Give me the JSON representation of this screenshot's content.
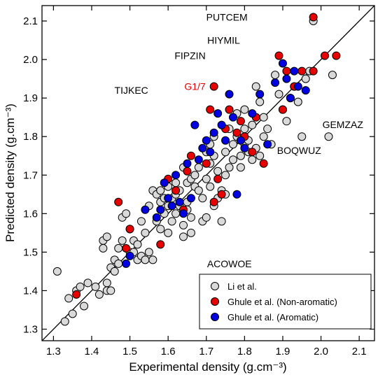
{
  "chart_data": {
    "type": "scatter",
    "xlabel": "Experimental density (g.cm⁻³)",
    "ylabel": "Predicted density (g.cm⁻³)",
    "xlim": [
      1.27,
      2.14
    ],
    "ylim": [
      1.27,
      2.14
    ],
    "xticks": [
      "1.3",
      "1.4",
      "1.5",
      "1.6",
      "1.7",
      "1.8",
      "1.9",
      "2.0",
      "2.1"
    ],
    "yticks": [
      "1.3",
      "1.4",
      "1.5",
      "1.6",
      "1.7",
      "1.8",
      "1.9",
      "2.0",
      "2.1"
    ],
    "grid": false,
    "legend_position": "bottom-right",
    "reference_line": "y = x",
    "colors": {
      "li": "#d9d9d9",
      "non_aromatic": "#e60000",
      "aromatic": "#0000e0",
      "highlight_label": "#e60000"
    },
    "series": [
      {
        "name": "Li et al.",
        "key": "li",
        "points": [
          [
            1.31,
            1.45
          ],
          [
            1.33,
            1.32
          ],
          [
            1.34,
            1.38
          ],
          [
            1.35,
            1.34
          ],
          [
            1.36,
            1.4
          ],
          [
            1.37,
            1.41
          ],
          [
            1.38,
            1.36
          ],
          [
            1.39,
            1.42
          ],
          [
            1.41,
            1.41
          ],
          [
            1.42,
            1.39
          ],
          [
            1.43,
            1.53
          ],
          [
            1.43,
            1.51
          ],
          [
            1.44,
            1.54
          ],
          [
            1.44,
            1.42
          ],
          [
            1.44,
            1.4
          ],
          [
            1.45,
            1.46
          ],
          [
            1.45,
            1.4
          ],
          [
            1.46,
            1.45
          ],
          [
            1.46,
            1.48
          ],
          [
            1.47,
            1.47
          ],
          [
            1.47,
            1.51
          ],
          [
            1.48,
            1.53
          ],
          [
            1.48,
            1.59
          ],
          [
            1.49,
            1.6
          ],
          [
            1.5,
            1.5
          ],
          [
            1.5,
            1.56
          ],
          [
            1.51,
            1.53
          ],
          [
            1.51,
            1.5
          ],
          [
            1.52,
            1.52
          ],
          [
            1.52,
            1.48
          ],
          [
            1.53,
            1.49
          ],
          [
            1.53,
            1.58
          ],
          [
            1.54,
            1.48
          ],
          [
            1.54,
            1.55
          ],
          [
            1.55,
            1.62
          ],
          [
            1.55,
            1.5
          ],
          [
            1.56,
            1.48
          ],
          [
            1.56,
            1.66
          ],
          [
            1.57,
            1.65
          ],
          [
            1.57,
            1.58
          ],
          [
            1.58,
            1.56
          ],
          [
            1.58,
            1.63
          ],
          [
            1.58,
            1.66
          ],
          [
            1.59,
            1.64
          ],
          [
            1.59,
            1.6
          ],
          [
            1.6,
            1.62
          ],
          [
            1.6,
            1.67
          ],
          [
            1.6,
            1.55
          ],
          [
            1.61,
            1.64
          ],
          [
            1.61,
            1.58
          ],
          [
            1.62,
            1.6
          ],
          [
            1.62,
            1.68
          ],
          [
            1.62,
            1.65
          ],
          [
            1.63,
            1.66
          ],
          [
            1.63,
            1.62
          ],
          [
            1.64,
            1.54
          ],
          [
            1.64,
            1.57
          ],
          [
            1.64,
            1.72
          ],
          [
            1.65,
            1.61
          ],
          [
            1.65,
            1.63
          ],
          [
            1.65,
            1.68
          ],
          [
            1.66,
            1.69
          ],
          [
            1.66,
            1.59
          ],
          [
            1.66,
            1.55
          ],
          [
            1.67,
            1.7
          ],
          [
            1.67,
            1.67
          ],
          [
            1.68,
            1.66
          ],
          [
            1.68,
            1.72
          ],
          [
            1.69,
            1.58
          ],
          [
            1.69,
            1.64
          ],
          [
            1.7,
            1.69
          ],
          [
            1.7,
            1.76
          ],
          [
            1.7,
            1.59
          ],
          [
            1.71,
            1.78
          ],
          [
            1.71,
            1.73
          ],
          [
            1.71,
            1.67
          ],
          [
            1.72,
            1.8
          ],
          [
            1.72,
            1.75
          ],
          [
            1.72,
            1.62
          ],
          [
            1.73,
            1.71
          ],
          [
            1.73,
            1.64
          ],
          [
            1.74,
            1.66
          ],
          [
            1.74,
            1.58
          ],
          [
            1.75,
            1.7
          ],
          [
            1.75,
            1.76
          ],
          [
            1.75,
            1.65
          ],
          [
            1.76,
            1.82
          ],
          [
            1.76,
            1.72
          ],
          [
            1.77,
            1.78
          ],
          [
            1.77,
            1.74
          ],
          [
            1.78,
            1.8
          ],
          [
            1.78,
            1.86
          ],
          [
            1.79,
            1.75
          ],
          [
            1.79,
            1.72
          ],
          [
            1.8,
            1.78
          ],
          [
            1.8,
            1.82
          ],
          [
            1.8,
            1.87
          ],
          [
            1.81,
            1.79
          ],
          [
            1.81,
            1.76
          ],
          [
            1.82,
            1.83
          ],
          [
            1.82,
            1.74
          ],
          [
            1.83,
            1.77
          ],
          [
            1.83,
            1.93
          ],
          [
            1.84,
            1.89
          ],
          [
            1.84,
            1.75
          ],
          [
            1.85,
            1.8
          ],
          [
            1.85,
            1.85
          ],
          [
            1.86,
            1.82
          ],
          [
            1.87,
            1.78
          ],
          [
            1.88,
            1.96
          ],
          [
            1.89,
            1.91
          ],
          [
            1.9,
            1.87
          ],
          [
            1.91,
            1.84
          ],
          [
            1.92,
            1.9
          ],
          [
            1.93,
            1.93
          ],
          [
            1.94,
            1.89
          ],
          [
            1.95,
            1.8
          ],
          [
            1.96,
            1.95
          ],
          [
            1.97,
            1.97
          ],
          [
            2.02,
            1.8
          ],
          [
            2.03,
            1.96
          ],
          [
            1.98,
            2.1
          ]
        ],
        "labeled_points": [
          {
            "label": "PUTCEM",
            "x": 1.83,
            "y": 2.11,
            "side": "left"
          },
          {
            "label": "HIYMIL",
            "x": 1.81,
            "y": 2.05,
            "side": "left"
          },
          {
            "label": "FIPZIN",
            "x": 1.72,
            "y": 2.01,
            "side": "left"
          },
          {
            "label": "TIJKEC",
            "x": 1.57,
            "y": 1.92,
            "side": "left"
          },
          {
            "label": "GEMZAZ",
            "x": 2.0,
            "y": 1.8,
            "side": "above-right"
          },
          {
            "label": "BOQWUZ",
            "x": 1.95,
            "y": 1.8,
            "side": "below"
          },
          {
            "label": "ACOWOE",
            "x": 1.68,
            "y": 1.47,
            "side": "right"
          }
        ]
      },
      {
        "name": "Ghule et al. (Non-aromatic)",
        "key": "non_aromatic",
        "points": [
          [
            1.36,
            1.39
          ],
          [
            1.47,
            1.63
          ],
          [
            1.49,
            1.51
          ],
          [
            1.5,
            1.56
          ],
          [
            1.58,
            1.52
          ],
          [
            1.6,
            1.69
          ],
          [
            1.62,
            1.66
          ],
          [
            1.64,
            1.61
          ],
          [
            1.65,
            1.71
          ],
          [
            1.66,
            1.75
          ],
          [
            1.7,
            1.73
          ],
          [
            1.71,
            1.87
          ],
          [
            1.72,
            1.63
          ],
          [
            1.73,
            1.69
          ],
          [
            1.74,
            1.65
          ],
          [
            1.75,
            1.82
          ],
          [
            1.76,
            1.87
          ],
          [
            1.78,
            1.81
          ],
          [
            1.79,
            1.84
          ],
          [
            1.8,
            1.8
          ],
          [
            1.82,
            1.76
          ],
          [
            1.83,
            1.85
          ],
          [
            1.85,
            1.73
          ],
          [
            1.89,
            2.01
          ],
          [
            1.9,
            1.87
          ],
          [
            1.91,
            1.97
          ],
          [
            1.93,
            1.93
          ],
          [
            1.95,
            1.97
          ],
          [
            1.98,
            1.97
          ],
          [
            2.01,
            2.01
          ],
          [
            2.04,
            2.01
          ],
          [
            1.98,
            2.11
          ],
          [
            1.72,
            1.93
          ]
        ],
        "labeled_points": [
          {
            "label": "G1/7",
            "x": 1.72,
            "y": 1.93,
            "side": "left"
          }
        ]
      },
      {
        "name": "Ghule et al. (Aromatic)",
        "key": "aromatic",
        "points": [
          [
            1.49,
            1.47
          ],
          [
            1.5,
            1.49
          ],
          [
            1.54,
            1.61
          ],
          [
            1.57,
            1.59
          ],
          [
            1.58,
            1.61
          ],
          [
            1.59,
            1.68
          ],
          [
            1.6,
            1.64
          ],
          [
            1.61,
            1.62
          ],
          [
            1.62,
            1.7
          ],
          [
            1.63,
            1.63
          ],
          [
            1.64,
            1.6
          ],
          [
            1.65,
            1.73
          ],
          [
            1.66,
            1.64
          ],
          [
            1.67,
            1.83
          ],
          [
            1.68,
            1.74
          ],
          [
            1.69,
            1.77
          ],
          [
            1.7,
            1.79
          ],
          [
            1.71,
            1.76
          ],
          [
            1.72,
            1.81
          ],
          [
            1.73,
            1.86
          ],
          [
            1.74,
            1.83
          ],
          [
            1.75,
            1.79
          ],
          [
            1.76,
            1.91
          ],
          [
            1.77,
            1.85
          ],
          [
            1.78,
            1.65
          ],
          [
            1.79,
            1.79
          ],
          [
            1.8,
            1.77
          ],
          [
            1.82,
            1.86
          ],
          [
            1.84,
            1.91
          ],
          [
            1.86,
            1.78
          ],
          [
            1.88,
            1.94
          ],
          [
            1.9,
            1.99
          ],
          [
            1.91,
            1.95
          ],
          [
            1.92,
            1.9
          ],
          [
            1.93,
            1.97
          ],
          [
            1.94,
            1.93
          ],
          [
            1.96,
            1.92
          ]
        ]
      }
    ]
  }
}
